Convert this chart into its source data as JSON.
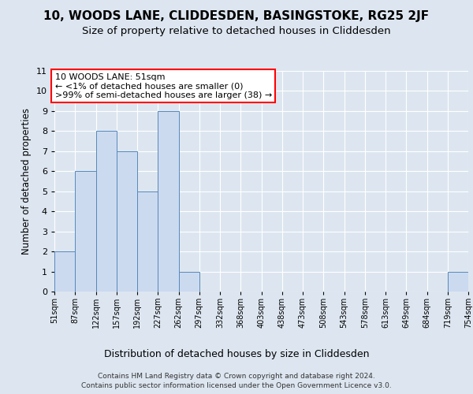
{
  "title": "10, WOODS LANE, CLIDDESDEN, BASINGSTOKE, RG25 2JF",
  "subtitle": "Size of property relative to detached houses in Cliddesden",
  "xlabel": "Distribution of detached houses by size in Cliddesden",
  "ylabel": "Number of detached properties",
  "bar_values": [
    2,
    6,
    8,
    7,
    5,
    9,
    1,
    0,
    0,
    0,
    0,
    0,
    0,
    0,
    0,
    0,
    0,
    0,
    0,
    1
  ],
  "categories": [
    "51sqm",
    "87sqm",
    "122sqm",
    "157sqm",
    "192sqm",
    "227sqm",
    "262sqm",
    "297sqm",
    "332sqm",
    "368sqm",
    "403sqm",
    "438sqm",
    "473sqm",
    "508sqm",
    "543sqm",
    "578sqm",
    "613sqm",
    "649sqm",
    "684sqm",
    "719sqm",
    "754sqm"
  ],
  "bar_color": "#ccdaf0",
  "bar_edge_color": "#5588bb",
  "ylim": [
    0,
    11
  ],
  "yticks": [
    0,
    1,
    2,
    3,
    4,
    5,
    6,
    7,
    8,
    9,
    10,
    11
  ],
  "annotation_text": "10 WOODS LANE: 51sqm\n← <1% of detached houses are smaller (0)\n>99% of semi-detached houses are larger (38) →",
  "annotation_box_color": "white",
  "annotation_box_edgecolor": "red",
  "footer_line1": "Contains HM Land Registry data © Crown copyright and database right 2024.",
  "footer_line2": "Contains public sector information licensed under the Open Government Licence v3.0.",
  "background_color": "#dde6f0",
  "plot_bg_color": "#dde6f0",
  "grid_color": "#ffffff"
}
